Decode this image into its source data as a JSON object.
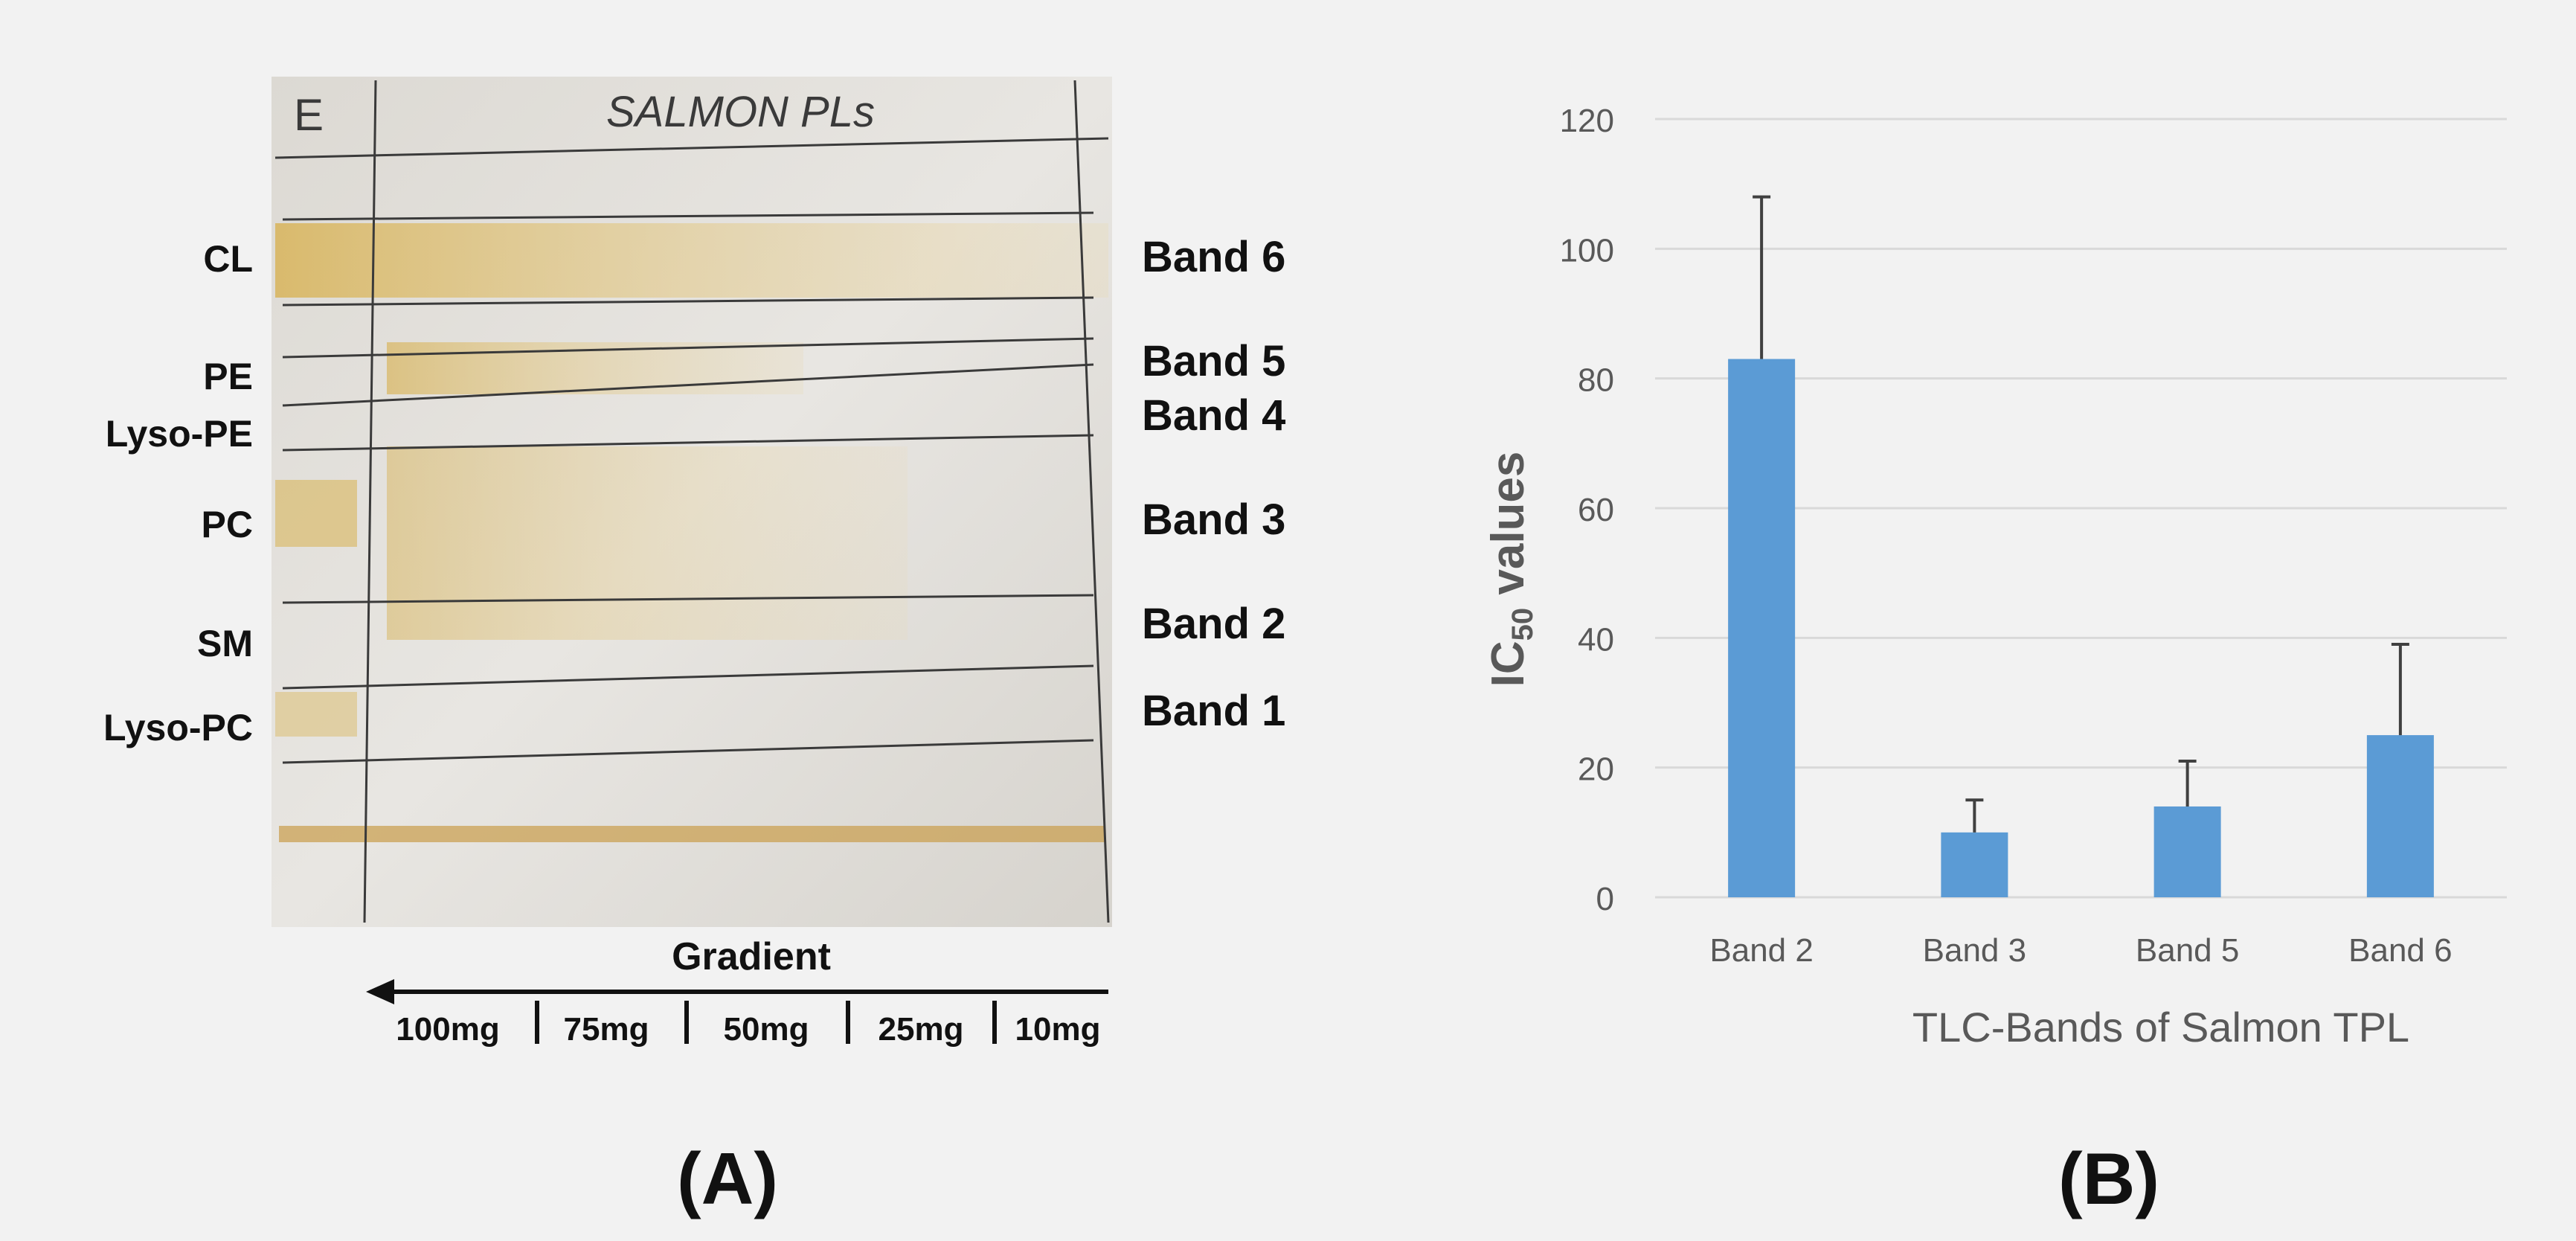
{
  "panel_a": {
    "plate_header_left": "E",
    "plate_header_title": "SALMON PLs",
    "left_labels": [
      "CL",
      "PE",
      "Lyso-PE",
      "PC",
      "SM",
      "Lyso-PC"
    ],
    "right_labels": [
      "Band 6",
      "Band 5",
      "Band 4",
      "Band 3",
      "Band 2",
      "Band 1"
    ],
    "gradient_title": "Gradient",
    "gradient_steps": [
      "100mg",
      "75mg",
      "50mg",
      "25mg",
      "10mg"
    ],
    "panel_label": "(A)",
    "colors": {
      "plate": "#e4e1dc",
      "band_stain": "#d9b65c",
      "pencil": "#3a3a3a"
    }
  },
  "panel_b": {
    "panel_label": "(B)",
    "y_axis_label_main": "IC",
    "y_axis_label_sub": "50",
    "y_axis_label_rest": " values",
    "x_axis_label": "TLC-Bands of Salmon TPL",
    "colors": {
      "bar": "#5b9bd5",
      "error": "#404040",
      "grid": "#d9d9d9",
      "text": "#595959"
    }
  },
  "chart_data": {
    "type": "bar",
    "categories": [
      "Band 2",
      "Band 3",
      "Band 5",
      "Band 6"
    ],
    "values": [
      83,
      10,
      14,
      25
    ],
    "error_upper": [
      25,
      5,
      7,
      14
    ],
    "xlabel": "TLC-Bands of Salmon TPL",
    "ylabel": "IC50 values",
    "ylim": [
      0,
      120
    ],
    "yticks": [
      0,
      20,
      40,
      60,
      80,
      100,
      120
    ],
    "grid": true,
    "legend": "none"
  }
}
